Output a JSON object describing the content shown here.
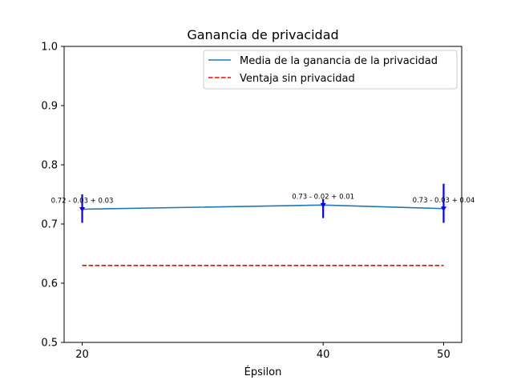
{
  "chart_data": {
    "type": "line",
    "title": "Ganancia de privacidad",
    "xlabel": "Épsilon",
    "ylabel": "",
    "x": [
      20,
      40,
      50
    ],
    "x_ticks": [
      "20",
      "40",
      "50"
    ],
    "ylim": [
      0.5,
      1.0
    ],
    "y_ticks": [
      "0.5",
      "0.6",
      "0.7",
      "0.8",
      "0.9",
      "1.0"
    ],
    "grid": false,
    "legend_position": "top-right",
    "series": [
      {
        "name": "Media de la ganancia de la privacidad",
        "style": "solid",
        "color": "#1f77b4",
        "values": [
          0.725,
          0.732,
          0.726
        ],
        "error_lower": [
          0.702,
          0.71,
          0.702
        ],
        "error_upper": [
          0.75,
          0.742,
          0.768
        ],
        "error_color": "#0000ff",
        "labels": [
          "0.72 - 0.03 + 0.03",
          "0.73 - 0.02 + 0.01",
          "0.73 - 0.03 + 0.04"
        ]
      },
      {
        "name": "Ventaja sin privacidad",
        "style": "dashed",
        "color": "#ff0000",
        "values": [
          0.63,
          0.63,
          0.63
        ]
      }
    ]
  }
}
